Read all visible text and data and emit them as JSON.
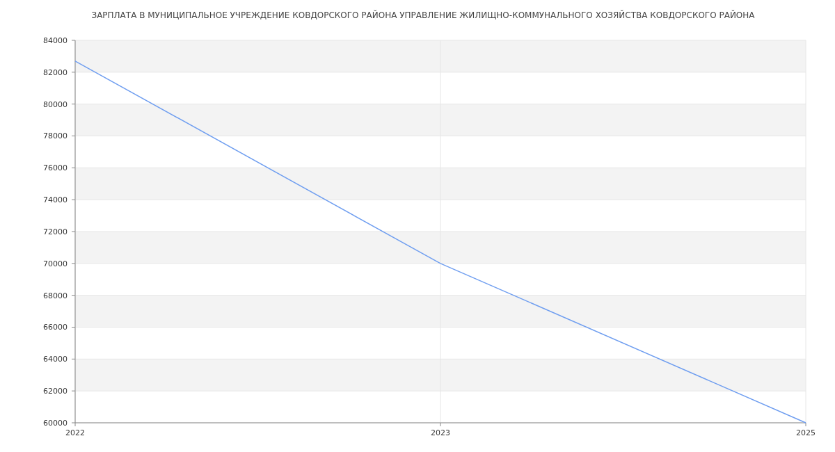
{
  "chart_data": {
    "type": "line",
    "title": "ЗАРПЛАТА В МУНИЦИПАЛЬНОЕ УЧРЕЖДЕНИЕ КОВДОРСКОГО РАЙОНА УПРАВЛЕНИЕ ЖИЛИЩНО-КОММУНАЛЬНОГО ХОЗЯЙСТВА КОВДОРСКОГО РАЙОНА",
    "categories": [
      "2022",
      "2023",
      "2025"
    ],
    "series": [
      {
        "color": "#6f9ef0",
        "values": [
          82700,
          70000,
          60000
        ]
      }
    ],
    "ylim": [
      60000,
      84000
    ],
    "yticks": [
      60000,
      62000,
      64000,
      66000,
      68000,
      70000,
      72000,
      74000,
      76000,
      78000,
      80000,
      82000,
      84000
    ],
    "grid": true,
    "marker": "none",
    "line_style": "solid"
  }
}
